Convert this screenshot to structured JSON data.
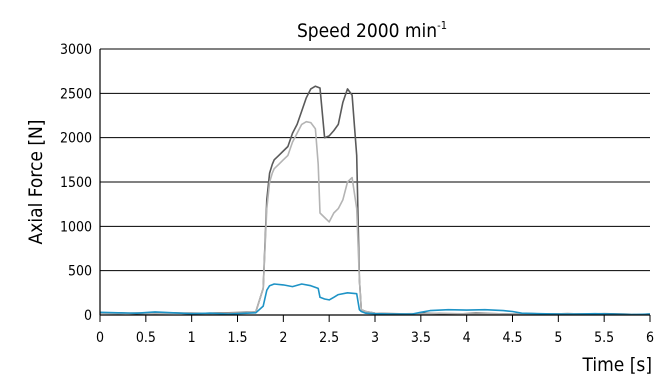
{
  "chart_data": {
    "type": "line",
    "title": "Speed 2000 min",
    "title_superscript": "-1",
    "xlabel": "Time [s]",
    "ylabel": "Axial Force [N]",
    "xlim": [
      0,
      6
    ],
    "ylim": [
      0,
      3000
    ],
    "xticks": [
      0,
      0.5,
      1,
      1.5,
      2,
      2.5,
      3,
      3.5,
      4,
      4.5,
      5,
      5.5,
      6
    ],
    "xtick_labels": [
      "0",
      "0.5",
      "1",
      "1.5",
      "2",
      "2.5",
      "3",
      "3.5",
      "4",
      "4.5",
      "5",
      "5.5",
      "6"
    ],
    "yticks": [
      0,
      500,
      1000,
      1500,
      2000,
      2500,
      3000
    ],
    "ytick_labels": [
      "0",
      "500",
      "1000",
      "1500",
      "2000",
      "2500",
      "3000"
    ],
    "grid": "horizontal",
    "legend": "none",
    "series": [
      {
        "color": "#5a5a5a",
        "x": [
          0,
          0.2,
          0.4,
          0.6,
          0.8,
          1.0,
          1.2,
          1.4,
          1.6,
          1.7,
          1.78,
          1.82,
          1.85,
          1.88,
          1.9,
          1.95,
          2.0,
          2.05,
          2.1,
          2.15,
          2.2,
          2.25,
          2.3,
          2.35,
          2.4,
          2.45,
          2.5,
          2.55,
          2.6,
          2.65,
          2.7,
          2.75,
          2.8,
          2.83,
          2.85,
          2.9,
          3.0,
          3.2,
          3.4,
          3.5,
          3.7,
          3.9,
          4.1,
          4.3,
          4.5,
          4.7,
          4.9,
          5.1,
          5.3,
          5.5,
          5.7,
          5.9,
          6.0
        ],
        "y": [
          20,
          25,
          15,
          20,
          25,
          15,
          20,
          25,
          30,
          35,
          300,
          1300,
          1600,
          1700,
          1750,
          1800,
          1850,
          1900,
          2050,
          2150,
          2300,
          2450,
          2550,
          2580,
          2560,
          2000,
          2020,
          2080,
          2150,
          2400,
          2550,
          2480,
          1800,
          400,
          60,
          40,
          20,
          15,
          10,
          20,
          15,
          10,
          20,
          15,
          10,
          15,
          10,
          15,
          10,
          15,
          10,
          5,
          10
        ]
      },
      {
        "color": "#b4b4b4",
        "x": [
          0,
          0.2,
          0.4,
          0.6,
          0.8,
          1.0,
          1.2,
          1.4,
          1.6,
          1.7,
          1.78,
          1.82,
          1.85,
          1.88,
          1.9,
          1.95,
          2.0,
          2.05,
          2.1,
          2.15,
          2.2,
          2.25,
          2.3,
          2.35,
          2.38,
          2.4,
          2.45,
          2.5,
          2.55,
          2.6,
          2.65,
          2.7,
          2.75,
          2.8,
          2.83,
          2.85,
          2.9,
          3.0,
          3.2,
          3.4,
          3.5,
          3.7,
          3.9,
          4.1,
          4.3,
          4.5,
          4.7,
          4.9,
          5.1,
          5.3,
          5.5,
          5.7,
          5.9,
          6.0
        ],
        "y": [
          20,
          15,
          25,
          15,
          20,
          25,
          15,
          20,
          25,
          35,
          300,
          1200,
          1500,
          1600,
          1650,
          1700,
          1750,
          1800,
          1950,
          2050,
          2150,
          2180,
          2170,
          2100,
          1700,
          1150,
          1100,
          1050,
          1150,
          1200,
          1300,
          1500,
          1550,
          1200,
          400,
          60,
          40,
          20,
          10,
          15,
          10,
          20,
          15,
          10,
          15,
          10,
          15,
          10,
          15,
          10,
          5,
          10,
          5,
          10
        ]
      },
      {
        "color": "#1e93c6",
        "x": [
          0,
          0.2,
          0.4,
          0.6,
          0.8,
          1.0,
          1.2,
          1.4,
          1.6,
          1.7,
          1.78,
          1.82,
          1.85,
          1.9,
          2.0,
          2.1,
          2.2,
          2.3,
          2.38,
          2.4,
          2.45,
          2.5,
          2.55,
          2.6,
          2.7,
          2.8,
          2.83,
          2.85,
          2.9,
          3.0,
          3.2,
          3.4,
          3.5,
          3.6,
          3.8,
          4.0,
          4.2,
          4.4,
          4.5,
          4.6,
          4.8,
          5.0,
          5.2,
          5.4,
          5.6,
          5.8,
          6.0
        ],
        "y": [
          30,
          25,
          20,
          35,
          25,
          15,
          20,
          10,
          20,
          25,
          100,
          280,
          330,
          350,
          340,
          320,
          350,
          330,
          300,
          200,
          180,
          170,
          200,
          230,
          250,
          240,
          60,
          40,
          20,
          15,
          10,
          10,
          30,
          50,
          60,
          55,
          60,
          50,
          40,
          20,
          15,
          10,
          10,
          15,
          10,
          5,
          10
        ]
      }
    ]
  }
}
